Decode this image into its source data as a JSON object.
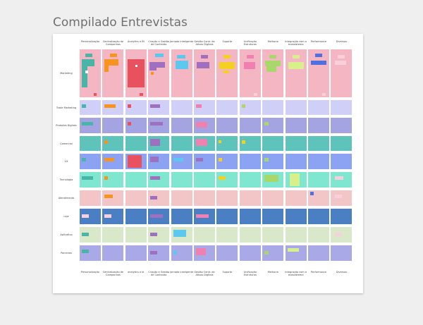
{
  "title": "Compilado Entrevistas",
  "columns": [
    "Personalização",
    "Centralização de Campanhas",
    "Analytics e BI",
    "Criação e Gestão de Conteúdo",
    "Jornada Inteligente",
    "Gestão Centr. de Ativos Digitais",
    "Suporte",
    "Unificação Estruturas",
    "Melhoria",
    "Integração com o ecossistema",
    "Performance",
    "Diversos"
  ],
  "rows": [
    "Marketing",
    "Trade Marketing",
    "Produtos Digitais",
    "Comercial",
    "UX",
    "Tecnologia",
    "Atendimento",
    "Loja",
    "Aplicativo",
    "Parceiros"
  ],
  "footer_labels": [
    "Personalização",
    "Centralização de Campanhas",
    "analytics e bi",
    "Criação e Gestão de Conteúdo",
    "jornada inteligente",
    "Gestão Centr. de Ativos Digitais",
    "Suporte",
    "Unificação Estruturas",
    "Melhoria",
    "Integração com o ecossistema",
    "Performance",
    "Diversos"
  ]
}
